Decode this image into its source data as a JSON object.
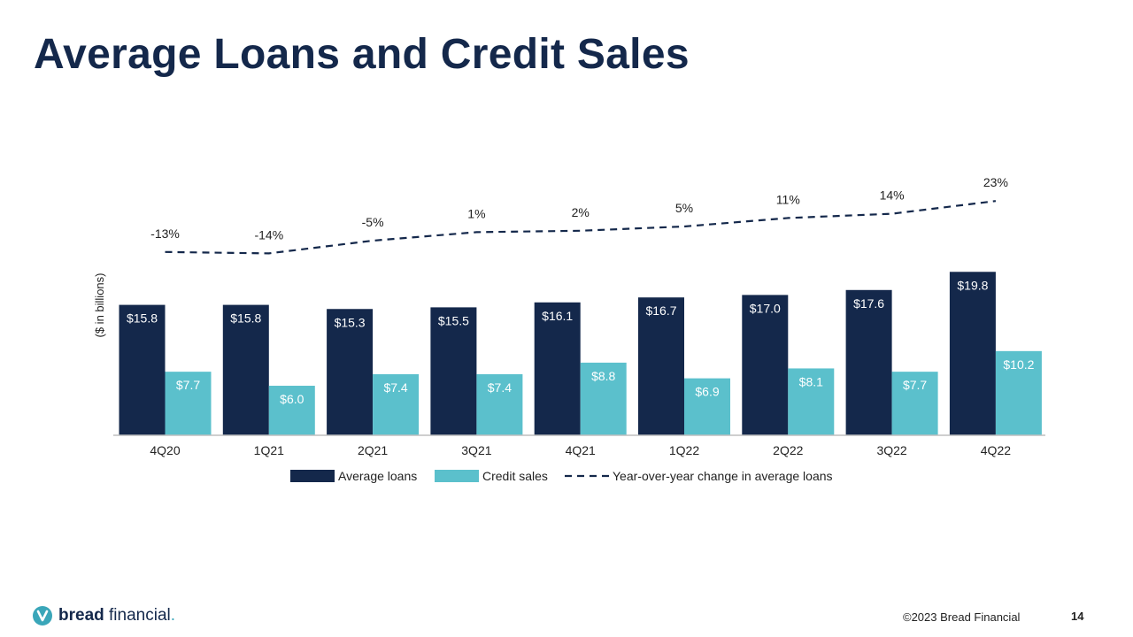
{
  "slide": {
    "title": "Average Loans and Credit Sales",
    "copyright": "©2023 Bread Financial",
    "page_number": "14"
  },
  "brand": {
    "name_bold": "bread",
    "name_rest": " financial",
    "name_suffix": ".",
    "icon": "bread-logo-icon"
  },
  "colors": {
    "average_loans": "#14284b",
    "credit_sales": "#5bc0cc",
    "yoy_line": "#14284b",
    "axis": "#bfbfbf",
    "bar_label_on_dark": "#ffffff",
    "bar_label_on_light": "#ffffff"
  },
  "chart_data": {
    "type": "bar",
    "ylabel": "($  in billions)",
    "categories": [
      "4Q20",
      "1Q21",
      "2Q21",
      "3Q21",
      "4Q21",
      "1Q22",
      "2Q22",
      "3Q22",
      "4Q22"
    ],
    "series": [
      {
        "name": "Average loans",
        "values": [
          15.8,
          15.8,
          15.3,
          15.5,
          16.1,
          16.7,
          17.0,
          17.6,
          19.8
        ],
        "labels": [
          "$15.8",
          "$15.8",
          "$15.3",
          "$15.5",
          "$16.1",
          "$16.7",
          "$17.0",
          "$17.6",
          "$19.8"
        ]
      },
      {
        "name": "Credit sales",
        "values": [
          7.7,
          6.0,
          7.4,
          7.4,
          8.8,
          6.9,
          8.1,
          7.7,
          10.2
        ],
        "labels": [
          "$7.7",
          "$6.0",
          "$7.4",
          "$7.4",
          "$8.8",
          "$6.9",
          "$8.1",
          "$7.7",
          "$10.2"
        ]
      },
      {
        "name": "Year-over-year change in average loans",
        "type": "line",
        "style": "dashed",
        "values": [
          -13,
          -14,
          -5,
          1,
          2,
          5,
          11,
          14,
          23
        ],
        "labels": [
          "-13%",
          "-14%",
          "-5%",
          "1%",
          "2%",
          "5%",
          "11%",
          "14%",
          "23%"
        ]
      }
    ],
    "legend_position": "bottom",
    "grid": false
  }
}
